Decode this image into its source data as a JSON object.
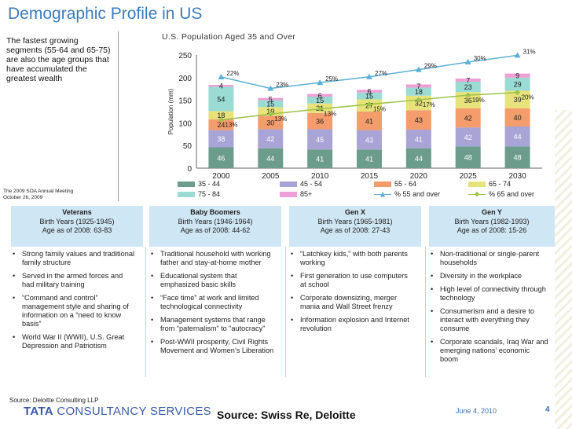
{
  "slide": {
    "title": "Demographic Profile in US",
    "side_note": "The fastest growing segments (55-64 and 65-75) are also the age groups that have accumulated the greatest wealth",
    "meeting_line1": "The 2009 SOA Annual Meeting",
    "meeting_line2": "October 26, 2009",
    "source": "Source: Swiss Re, Deloitte",
    "date": "June 4, 2010",
    "page_number": "4",
    "logo_tata": "TATA",
    "logo_rest": "CONSULTANCY SERVICES",
    "generations_source": "Source: Deloitte Consulting LLP"
  },
  "chart_data": {
    "type": "bar",
    "title": "U.S. Population Aged 35 and Over",
    "ylabel": "Population (mm)",
    "ylim": [
      0,
      250
    ],
    "yticks": [
      0,
      50,
      100,
      150,
      200,
      250
    ],
    "categories": [
      "2000",
      "2005",
      "2010",
      "2015",
      "2020",
      "2025",
      "2030"
    ],
    "series": [
      {
        "name": "35 - 44",
        "color": "#6c9c8c",
        "values": [
          46,
          44,
          41,
          41,
          44,
          48,
          48
        ]
      },
      {
        "name": "45 - 54",
        "color": "#a9a4d6",
        "values": [
          38,
          42,
          45,
          43,
          41,
          42,
          44
        ]
      },
      {
        "name": "55 - 64",
        "color": "#f59c6c",
        "values": [
          24,
          30,
          36,
          41,
          43,
          42,
          40
        ]
      },
      {
        "name": "65 - 74",
        "color": "#e8e27a",
        "values": [
          18,
          19,
          21,
          27,
          32,
          36,
          39
        ]
      },
      {
        "name": "75 - 84",
        "color": "#9adbd3",
        "values": [
          54,
          15,
          15,
          15,
          18,
          23,
          29
        ]
      },
      {
        "name": "85+",
        "color": "#ed9fd6",
        "values": [
          4,
          5,
          6,
          6,
          7,
          7,
          9
        ]
      }
    ],
    "lines": [
      {
        "name": "% 55 and over",
        "color": "#5ab0d6",
        "labels": [
          "22%",
          "23%",
          "25%",
          "27%",
          "29%",
          "30%",
          "31%"
        ]
      },
      {
        "name": "% 65 and over",
        "color": "#9cc24a",
        "labels": [
          "13%",
          "13%",
          "13%",
          "15%",
          "17%",
          "19%",
          "20%"
        ]
      }
    ]
  },
  "generations": [
    {
      "name": "Veterans",
      "birth": "Birth Years (1925-1945)",
      "age": "Age as of 2008: 63-83",
      "items": [
        "Strong family values and traditional family structure",
        "Served in the armed forces and had military training",
        "“Command and control” management style and sharing of information on a “need to know basis”",
        "World War II (WWII), U.S. Great Depression and Patriotism"
      ]
    },
    {
      "name": "Baby Boomers",
      "birth": "Birth Years (1946-1964)",
      "age": "Age as of 2008: 44-62",
      "items": [
        "Traditional household with working father and stay-at-home mother",
        "Educational system that emphasized basic skills",
        "“Face time” at work and limited technological connectivity",
        "Management systems that range from “paternalism” to “autocracy”",
        "Post-WWII prosperity, Civil Rights Movement and Women’s Liberation"
      ]
    },
    {
      "name": "Gen X",
      "birth": "Birth Years (1965-1981)",
      "age": "Age as of 2008: 27-43",
      "items": [
        "“Latchkey kids,” with both parents working",
        "First generation to use computers at school",
        "Corporate downsizing, merger mania and Wall Street frenzy",
        "Information explosion and Internet revolution"
      ]
    },
    {
      "name": "Gen Y",
      "birth": "Birth Years (1982-1993)",
      "age": "Age as of 2008: 15-26",
      "items": [
        "Non-traditional or single-parent households",
        "Diversity in the workplace",
        "High level of connectivity through technology",
        "Consumerism and a desire to interact with everything they consume",
        "Corporate scandals, Iraq War and emerging nations’ economic boom"
      ]
    }
  ]
}
